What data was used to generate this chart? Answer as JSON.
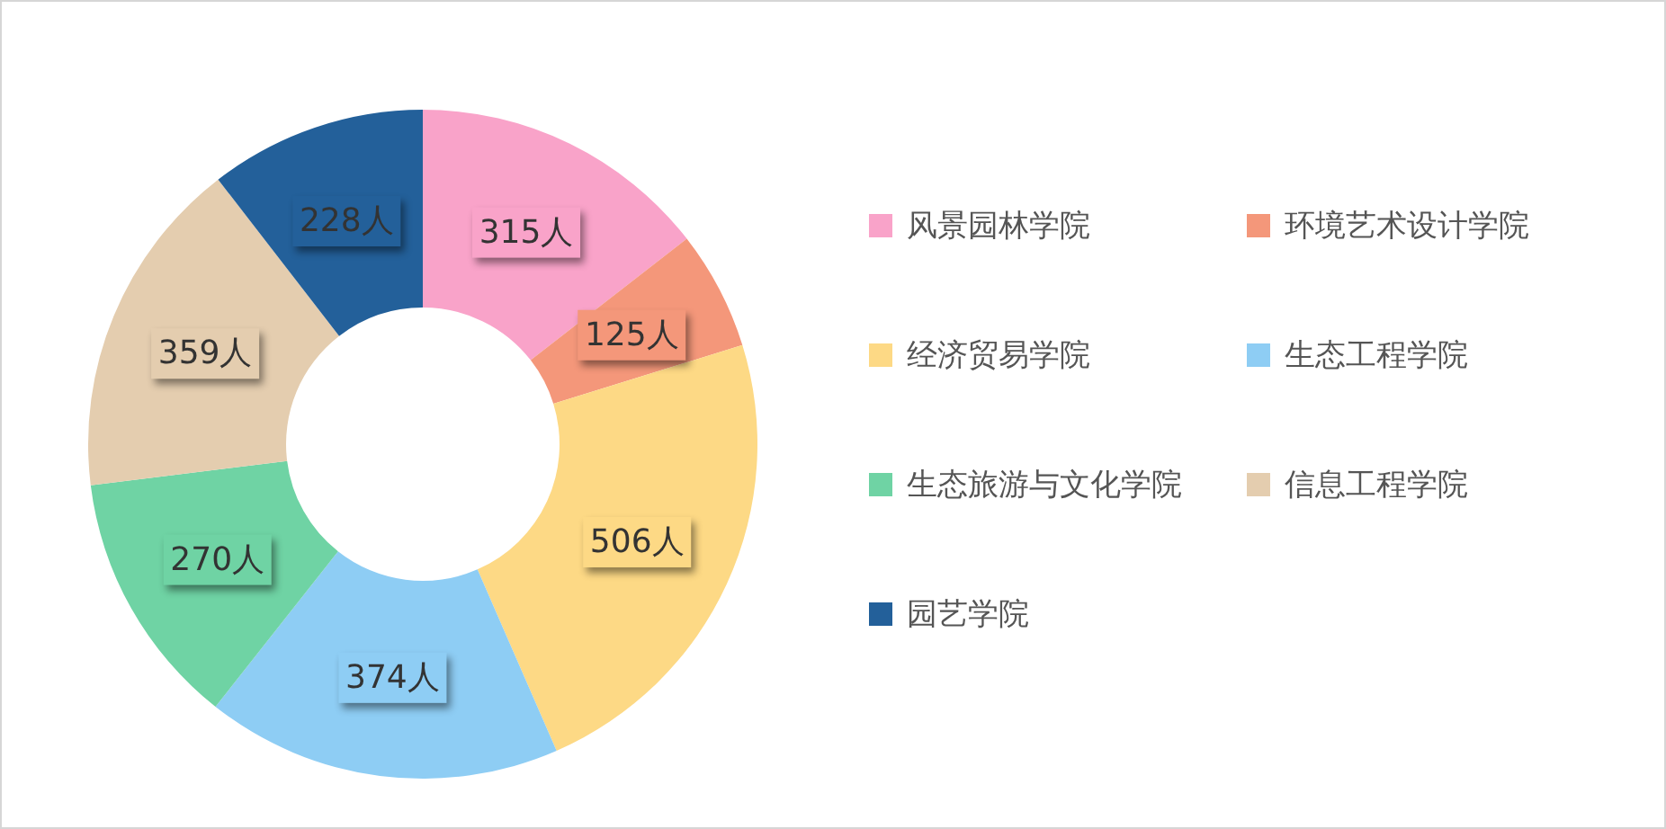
{
  "chart_data": {
    "type": "donut",
    "categories": [
      "风景园林学院",
      "环境艺术设计学院",
      "经济贸易学院",
      "生态工程学院",
      "生态旅游与文化学院",
      "信息工程学院",
      "园艺学院"
    ],
    "values": [
      315,
      125,
      506,
      374,
      270,
      359,
      228
    ],
    "value_labels": [
      "315人",
      "125人",
      "506人",
      "374人",
      "270人",
      "359人",
      "228人"
    ],
    "colors": [
      "#f9a3c9",
      "#f4977a",
      "#fdd985",
      "#8ecdf4",
      "#6fd3a4",
      "#e4cdaf",
      "#23609a"
    ],
    "legend": "right"
  }
}
